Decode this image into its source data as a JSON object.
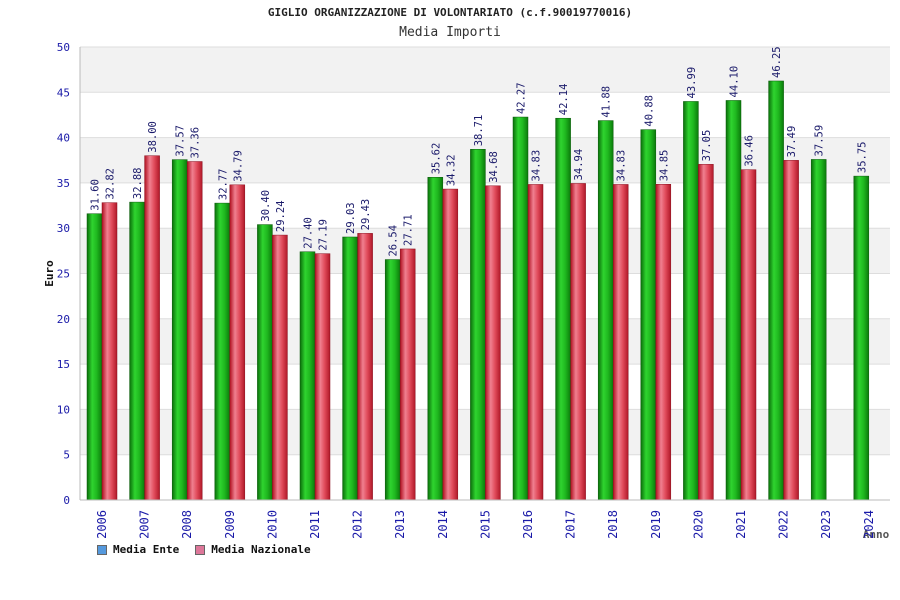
{
  "chart_data": {
    "type": "bar",
    "title": "GIGLIO ORGANIZZAZIONE DI VOLONTARIATO (c.f.90019770016)",
    "subtitle": "Media Importi",
    "xlabel": "Anno",
    "ylabel": "Euro",
    "ylim": [
      0,
      50
    ],
    "yticks": [
      0,
      5,
      10,
      15,
      20,
      25,
      30,
      35,
      40,
      45,
      50
    ],
    "categories": [
      "2006",
      "2007",
      "2008",
      "2009",
      "2010",
      "2011",
      "2012",
      "2013",
      "2014",
      "2015",
      "2016",
      "2017",
      "2018",
      "2019",
      "2020",
      "2021",
      "2022",
      "2023",
      "2024"
    ],
    "series": [
      {
        "name": "Media Ente",
        "color": "#22aa22",
        "values": [
          31.6,
          32.88,
          37.57,
          32.77,
          30.4,
          27.4,
          29.03,
          26.54,
          35.62,
          38.71,
          42.27,
          42.14,
          41.88,
          40.88,
          43.99,
          44.1,
          46.25,
          37.59,
          35.75
        ],
        "labels": [
          "31.60",
          "32.88",
          "37.57",
          "32.77",
          "30.40",
          "27.40",
          "29.03",
          "26.54",
          "35.62",
          "38.71",
          "42.27",
          "42.14",
          "41.88",
          "40.88",
          "43.99",
          "44.10",
          "46.25",
          "37.59",
          "35.75"
        ]
      },
      {
        "name": "Media Nazionale",
        "color": "#dd3344",
        "values": [
          32.82,
          38.0,
          37.36,
          34.79,
          29.24,
          27.19,
          29.43,
          27.71,
          34.32,
          34.68,
          34.83,
          34.94,
          34.83,
          34.85,
          37.05,
          36.46,
          37.49,
          null,
          null
        ],
        "labels": [
          "32.82",
          "38.00",
          "37.36",
          "34.79",
          "29.24",
          "27.19",
          "29.43",
          "27.71",
          "34.32",
          "34.68",
          "34.83",
          "34.94",
          "34.83",
          "34.85",
          "37.05",
          "36.46",
          "37.49",
          null,
          null
        ]
      }
    ],
    "legend": [
      {
        "label": "Media Ente",
        "color": "#5599dd"
      },
      {
        "label": "Media Nazionale",
        "color": "#dd7799"
      }
    ]
  }
}
